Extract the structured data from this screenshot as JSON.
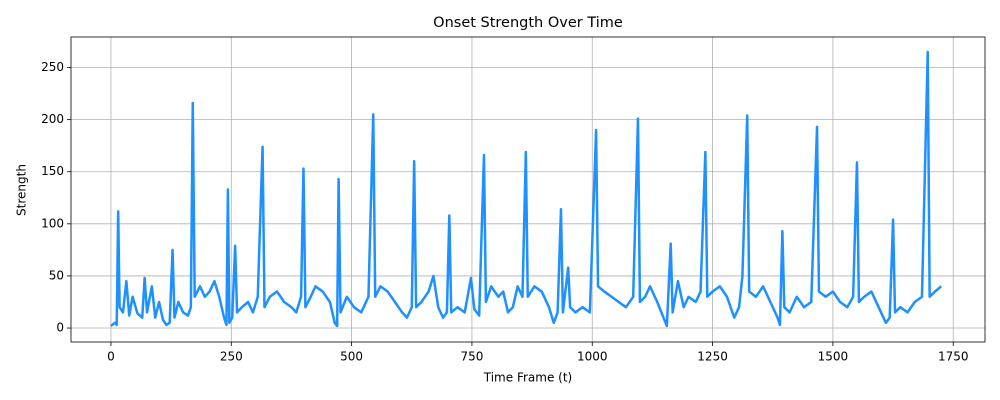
{
  "chart_data": {
    "type": "line",
    "title": "Onset Strength Over Time",
    "xlabel": "Time Frame (t)",
    "ylabel": "Strength",
    "x": [
      0,
      8,
      12,
      15,
      18,
      25,
      32,
      38,
      45,
      55,
      65,
      70,
      75,
      85,
      92,
      100,
      108,
      115,
      122,
      128,
      132,
      140,
      150,
      160,
      166,
      170,
      174,
      185,
      195,
      205,
      215,
      225,
      235,
      240,
      243,
      246,
      252,
      258,
      262,
      272,
      285,
      295,
      305,
      315,
      319,
      330,
      345,
      360,
      375,
      385,
      395,
      400,
      404,
      415,
      425,
      440,
      455,
      465,
      470,
      473,
      477,
      490,
      505,
      520,
      535,
      545,
      549,
      560,
      575,
      590,
      605,
      615,
      625,
      630,
      634,
      645,
      660,
      670,
      680,
      690,
      698,
      703,
      707,
      720,
      735,
      748,
      755,
      765,
      775,
      779,
      790,
      805,
      815,
      825,
      835,
      845,
      855,
      862,
      866,
      880,
      895,
      910,
      920,
      928,
      935,
      939,
      950,
      954,
      965,
      980,
      995,
      1008,
      1012,
      1025,
      1040,
      1055,
      1070,
      1085,
      1095,
      1099,
      1110,
      1120,
      1135,
      1148,
      1155,
      1163,
      1167,
      1178,
      1190,
      1200,
      1215,
      1225,
      1235,
      1239,
      1250,
      1265,
      1280,
      1295,
      1305,
      1312,
      1322,
      1326,
      1340,
      1355,
      1370,
      1385,
      1390,
      1395,
      1399,
      1410,
      1425,
      1440,
      1455,
      1467,
      1471,
      1485,
      1500,
      1515,
      1530,
      1542,
      1550,
      1554,
      1565,
      1580,
      1595,
      1610,
      1618,
      1625,
      1629,
      1640,
      1655,
      1670,
      1685,
      1697,
      1701,
      1712,
      1725
    ],
    "values": [
      2,
      5,
      3,
      112,
      20,
      15,
      45,
      12,
      30,
      14,
      10,
      48,
      15,
      40,
      10,
      25,
      8,
      3,
      5,
      75,
      10,
      25,
      15,
      12,
      20,
      216,
      30,
      40,
      30,
      35,
      45,
      30,
      10,
      3,
      133,
      5,
      10,
      79,
      15,
      20,
      25,
      15,
      30,
      174,
      20,
      30,
      35,
      25,
      20,
      15,
      30,
      153,
      20,
      30,
      40,
      35,
      25,
      5,
      2,
      143,
      15,
      30,
      20,
      15,
      30,
      205,
      30,
      40,
      35,
      25,
      15,
      10,
      20,
      160,
      20,
      25,
      35,
      50,
      20,
      10,
      15,
      108,
      15,
      20,
      15,
      48,
      18,
      12,
      166,
      25,
      40,
      30,
      35,
      15,
      20,
      40,
      30,
      169,
      30,
      40,
      35,
      20,
      5,
      15,
      114,
      15,
      58,
      20,
      15,
      20,
      15,
      190,
      40,
      35,
      30,
      25,
      20,
      30,
      201,
      25,
      30,
      40,
      25,
      10,
      2,
      81,
      15,
      45,
      20,
      30,
      25,
      35,
      169,
      30,
      35,
      40,
      30,
      10,
      20,
      50,
      204,
      35,
      30,
      40,
      25,
      10,
      3,
      93,
      20,
      15,
      30,
      20,
      25,
      193,
      35,
      30,
      35,
      25,
      20,
      30,
      159,
      25,
      30,
      35,
      20,
      5,
      10,
      104,
      15,
      20,
      15,
      25,
      30,
      265,
      30,
      35,
      40
    ],
    "color": "#1e90ff",
    "xlim": [
      -83,
      1816
    ],
    "ylim": [
      -13.4,
      279.3
    ],
    "xticks": [
      0,
      250,
      500,
      750,
      1000,
      1250,
      1500,
      1750
    ],
    "yticks": [
      0,
      50,
      100,
      150,
      200,
      250
    ],
    "grid": true
  }
}
